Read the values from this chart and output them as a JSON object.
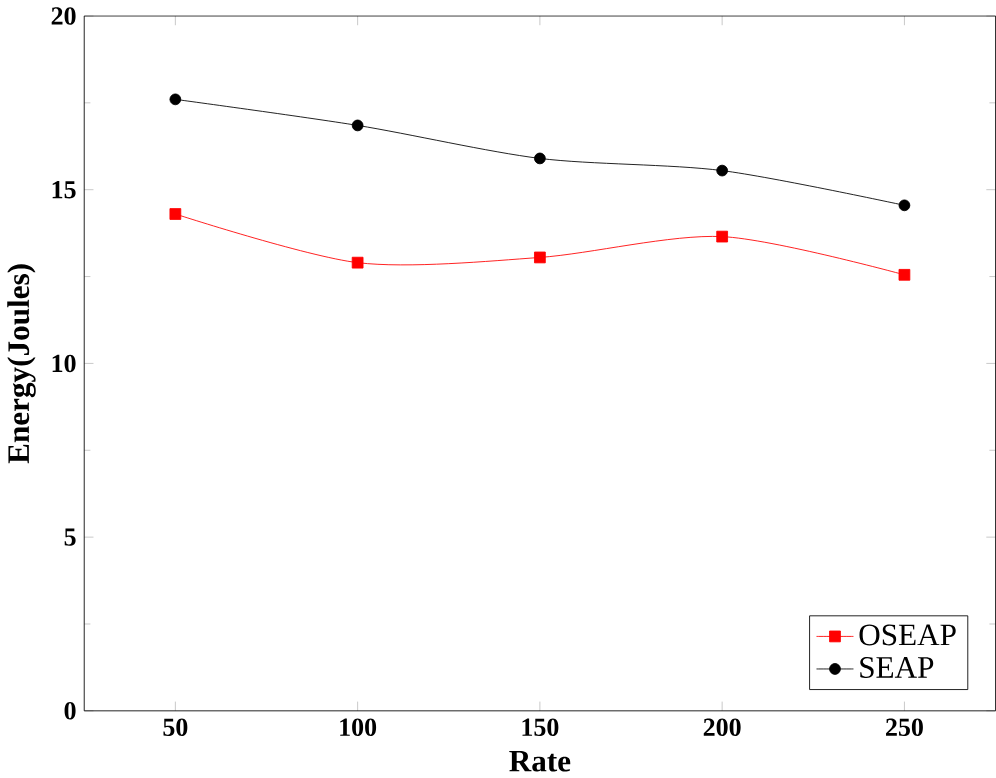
{
  "chart_data": {
    "type": "line",
    "xlabel": "Rate",
    "ylabel": "Energy(Joules)",
    "x": [
      50,
      100,
      150,
      200,
      250
    ],
    "series": [
      {
        "name": "OSEAP",
        "color": "#ff0000",
        "marker": "square",
        "values": [
          14.3,
          12.9,
          13.05,
          13.65,
          12.55
        ]
      },
      {
        "name": "SEAP",
        "color": "#000000",
        "marker": "circle",
        "values": [
          17.6,
          16.85,
          15.9,
          15.55,
          14.55
        ]
      }
    ],
    "xlim": [
      25,
      275
    ],
    "ylim": [
      0,
      20
    ],
    "xticks": [
      50,
      100,
      150,
      200,
      250
    ],
    "yticks": [
      0,
      5,
      10,
      15,
      20
    ],
    "legend": "bottom right"
  }
}
